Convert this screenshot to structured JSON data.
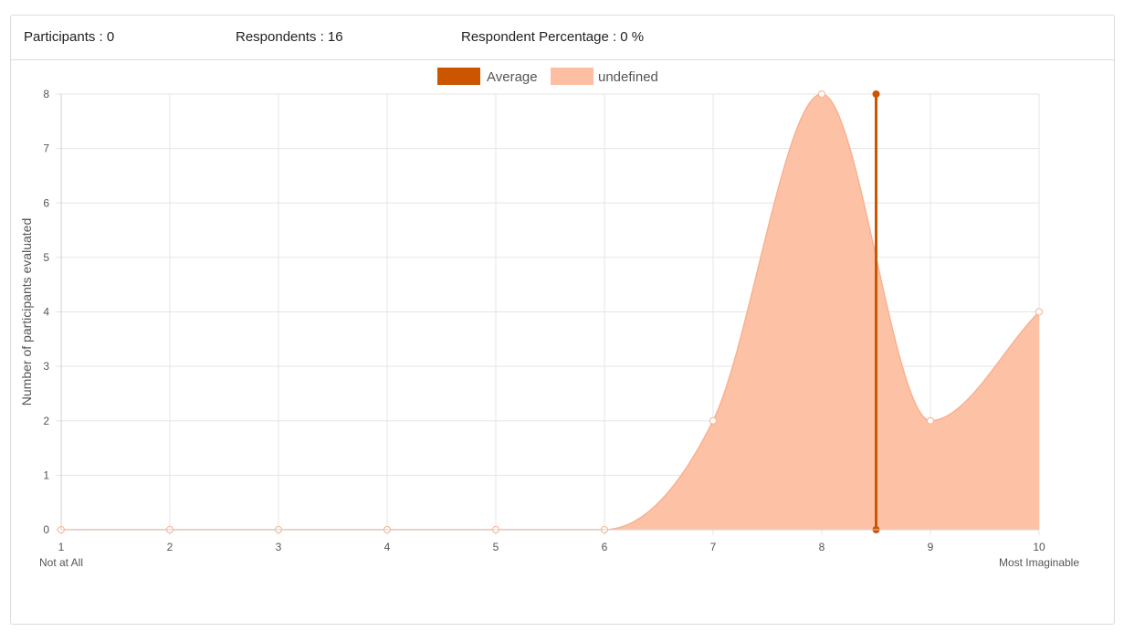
{
  "stats": {
    "participants": "Participants : 0",
    "respondents": "Respondents : 16",
    "respondent_percentage": "Respondent Percentage : 0 %"
  },
  "colors": {
    "average": "#cc5500",
    "distribution_fill": "#fdbfa1",
    "distribution_line": "#f9b190",
    "grid": "#e5e5e5",
    "text": "#555555"
  },
  "chart_data": {
    "type": "area",
    "ylabel": "Number of participants evaluated",
    "xlabel": "",
    "x": [
      1,
      2,
      3,
      4,
      5,
      6,
      7,
      8,
      9,
      10
    ],
    "x_tick_labels": [
      "1",
      "2",
      "3",
      "4",
      "5",
      "6",
      "7",
      "8",
      "9",
      "10"
    ],
    "x_sub_labels": {
      "first": "Not at All",
      "last": "Most Imaginable"
    },
    "ylim": [
      0,
      8
    ],
    "xlim": [
      1,
      10
    ],
    "y_ticks": [
      0,
      1,
      2,
      3,
      4,
      5,
      6,
      7,
      8
    ],
    "grid": true,
    "legend_position": "top",
    "series": [
      {
        "name": "Average",
        "type": "vertical-line",
        "x": 8.5,
        "y_range": [
          0,
          8
        ]
      },
      {
        "name": "undefined",
        "type": "area",
        "values": [
          0,
          0,
          0,
          0,
          0,
          0,
          2,
          8,
          2,
          4
        ]
      }
    ]
  }
}
